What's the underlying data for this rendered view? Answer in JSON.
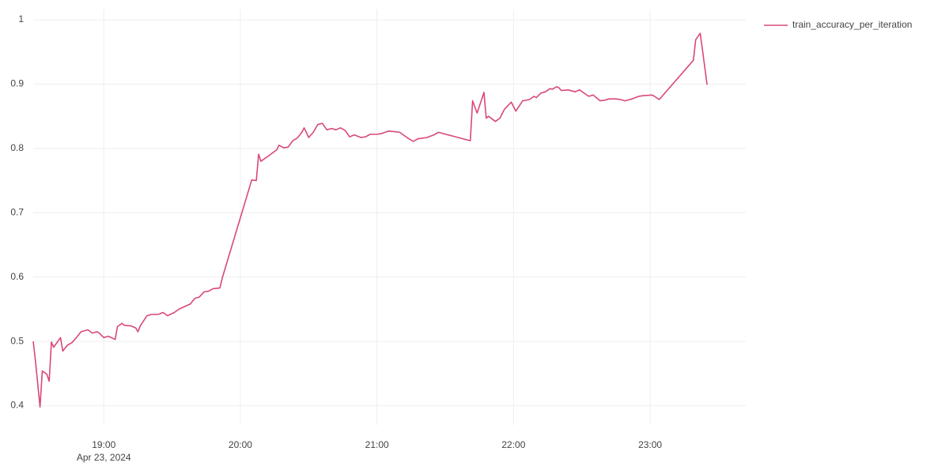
{
  "chart_data": {
    "type": "line",
    "x_date_label": "Apr 23, 2024",
    "x": [
      "2024-04-23 18:29",
      "2024-04-23 18:30",
      "2024-04-23 18:32",
      "2024-04-23 18:33",
      "2024-04-23 18:35",
      "2024-04-23 18:36",
      "2024-04-23 18:37",
      "2024-04-23 18:38",
      "2024-04-23 18:41",
      "2024-04-23 18:42",
      "2024-04-23 18:44",
      "2024-04-23 18:46",
      "2024-04-23 18:48",
      "2024-04-23 18:50",
      "2024-04-23 18:53",
      "2024-04-23 18:55",
      "2024-04-23 18:57",
      "2024-04-23 18:58",
      "2024-04-23 19:00",
      "2024-04-23 19:02",
      "2024-04-23 19:05",
      "2024-04-23 19:06",
      "2024-04-23 19:08",
      "2024-04-23 19:09",
      "2024-04-23 19:12",
      "2024-04-23 19:14",
      "2024-04-23 19:15",
      "2024-04-23 19:16",
      "2024-04-23 19:19",
      "2024-04-23 19:21",
      "2024-04-23 19:24",
      "2024-04-23 19:26",
      "2024-04-23 19:28",
      "2024-04-23 19:31",
      "2024-04-23 19:33",
      "2024-04-23 19:36",
      "2024-04-23 19:38",
      "2024-04-23 19:40",
      "2024-04-23 19:42",
      "2024-04-23 19:44",
      "2024-04-23 19:46",
      "2024-04-23 19:48",
      "2024-04-23 19:51",
      "2024-04-23 19:52",
      "2024-04-23 20:05",
      "2024-04-23 20:07",
      "2024-04-23 20:08",
      "2024-04-23 20:09",
      "2024-04-23 20:11",
      "2024-04-23 20:13",
      "2024-04-23 20:16",
      "2024-04-23 20:17",
      "2024-04-23 20:19",
      "2024-04-23 20:21",
      "2024-04-23 20:23",
      "2024-04-23 20:25",
      "2024-04-23 20:27",
      "2024-04-23 20:28",
      "2024-04-23 20:30",
      "2024-04-23 20:32",
      "2024-04-23 20:34",
      "2024-04-23 20:36",
      "2024-04-23 20:38",
      "2024-04-23 20:40",
      "2024-04-23 20:42",
      "2024-04-23 20:44",
      "2024-04-23 20:46",
      "2024-04-23 20:48",
      "2024-04-23 20:50",
      "2024-04-23 20:53",
      "2024-04-23 20:55",
      "2024-04-23 20:57",
      "2024-04-23 21:00",
      "2024-04-23 21:02",
      "2024-04-23 21:05",
      "2024-04-23 21:08",
      "2024-04-23 21:10",
      "2024-04-23 21:12",
      "2024-04-23 21:14",
      "2024-04-23 21:16",
      "2024-04-23 21:18",
      "2024-04-23 21:22",
      "2024-04-23 21:25",
      "2024-04-23 21:27",
      "2024-04-23 21:41",
      "2024-04-23 21:42",
      "2024-04-23 21:44",
      "2024-04-23 21:47",
      "2024-04-23 21:48",
      "2024-04-23 21:49",
      "2024-04-23 21:52",
      "2024-04-23 21:54",
      "2024-04-23 21:56",
      "2024-04-23 21:59",
      "2024-04-23 22:01",
      "2024-04-23 22:04",
      "2024-04-23 22:07",
      "2024-04-23 22:09",
      "2024-04-23 22:10",
      "2024-04-23 22:12",
      "2024-04-23 22:14",
      "2024-04-23 22:16",
      "2024-04-23 22:17",
      "2024-04-23 22:19",
      "2024-04-23 22:20",
      "2024-04-23 22:21",
      "2024-04-23 22:24",
      "2024-04-23 22:27",
      "2024-04-23 22:29",
      "2024-04-23 22:31",
      "2024-04-23 22:33",
      "2024-04-23 22:35",
      "2024-04-23 22:38",
      "2024-04-23 22:40",
      "2024-04-23 22:42",
      "2024-04-23 22:45",
      "2024-04-23 22:47",
      "2024-04-23 22:49",
      "2024-04-23 22:52",
      "2024-04-23 22:55",
      "2024-04-23 22:57",
      "2024-04-23 23:01",
      "2024-04-23 23:04",
      "2024-04-23 23:19",
      "2024-04-23 23:20",
      "2024-04-23 23:22",
      "2024-04-23 23:23",
      "2024-04-23 23:25"
    ],
    "series": [
      {
        "name": "train_accuracy_per_iteration",
        "color": "#d9487a",
        "values": [
          0.5,
          0.469,
          0.398,
          0.454,
          0.449,
          0.438,
          0.499,
          0.491,
          0.506,
          0.485,
          0.494,
          0.498,
          0.506,
          0.515,
          0.518,
          0.513,
          0.515,
          0.513,
          0.506,
          0.508,
          0.503,
          0.523,
          0.528,
          0.525,
          0.524,
          0.521,
          0.515,
          0.524,
          0.54,
          0.542,
          0.542,
          0.545,
          0.54,
          0.545,
          0.55,
          0.555,
          0.558,
          0.567,
          0.569,
          0.577,
          0.578,
          0.582,
          0.583,
          0.598,
          0.751,
          0.75,
          0.791,
          0.78,
          0.785,
          0.79,
          0.798,
          0.805,
          0.801,
          0.802,
          0.812,
          0.816,
          0.825,
          0.832,
          0.817,
          0.825,
          0.837,
          0.839,
          0.829,
          0.831,
          0.829,
          0.832,
          0.828,
          0.818,
          0.821,
          0.817,
          0.818,
          0.822,
          0.822,
          0.823,
          0.827,
          0.826,
          0.825,
          0.82,
          0.815,
          0.811,
          0.815,
          0.817,
          0.821,
          0.825,
          0.812,
          0.874,
          0.855,
          0.887,
          0.847,
          0.85,
          0.842,
          0.847,
          0.861,
          0.872,
          0.858,
          0.874,
          0.876,
          0.881,
          0.879,
          0.886,
          0.888,
          0.893,
          0.892,
          0.896,
          0.894,
          0.89,
          0.891,
          0.888,
          0.891,
          0.886,
          0.881,
          0.883,
          0.874,
          0.875,
          0.877,
          0.877,
          0.876,
          0.874,
          0.877,
          0.881,
          0.882,
          0.883,
          0.876,
          0.937,
          0.969,
          0.979,
          0.953,
          0.899
        ]
      }
    ],
    "xlim": [
      "2024-04-23 18:29",
      "2024-04-23 23:42"
    ],
    "xticks": [
      {
        "value": "2024-04-23 19:00",
        "label": "19:00"
      },
      {
        "value": "2024-04-23 20:00",
        "label": "20:00"
      },
      {
        "value": "2024-04-23 21:00",
        "label": "21:00"
      },
      {
        "value": "2024-04-23 22:00",
        "label": "22:00"
      },
      {
        "value": "2024-04-23 23:00",
        "label": "23:00"
      }
    ],
    "ylim": [
      0.37,
      1.016
    ],
    "yticks": [
      0.4,
      0.5,
      0.6,
      0.7,
      0.8,
      0.9,
      1
    ],
    "grid": true,
    "legend": "top-right"
  }
}
